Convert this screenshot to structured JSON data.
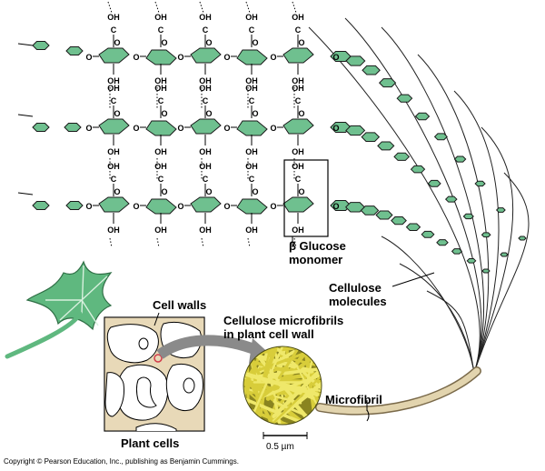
{
  "labels": {
    "beta_glucose_line1": "β Glucose",
    "beta_glucose_line2": "monomer",
    "cellulose_line1": "Cellulose",
    "cellulose_line2": "molecules",
    "cell_walls": "Cell walls",
    "microfibrils_line1": "Cellulose microfibrils",
    "microfibrils_line2": "in plant cell wall",
    "microfibril": "Microfibril",
    "plant_cells": "Plant cells",
    "scale_bar": "0.5 µm"
  },
  "atoms": {
    "oxygen": "O",
    "hydroxyl": "OH",
    "carbon": "C"
  },
  "copyright": "Copyright © Pearson Education, Inc., publishing as Benjamin Cummings.",
  "colors": {
    "ring_fill": "#6fc08f",
    "ring_stroke": "#1a1a1a",
    "leaf": "#5fb87f",
    "cell_wall": "#e8d9b8",
    "fibril": "#d8cd3a",
    "microfibril_tube": "#d9c9a0",
    "arrow": "#8a8a8a"
  }
}
